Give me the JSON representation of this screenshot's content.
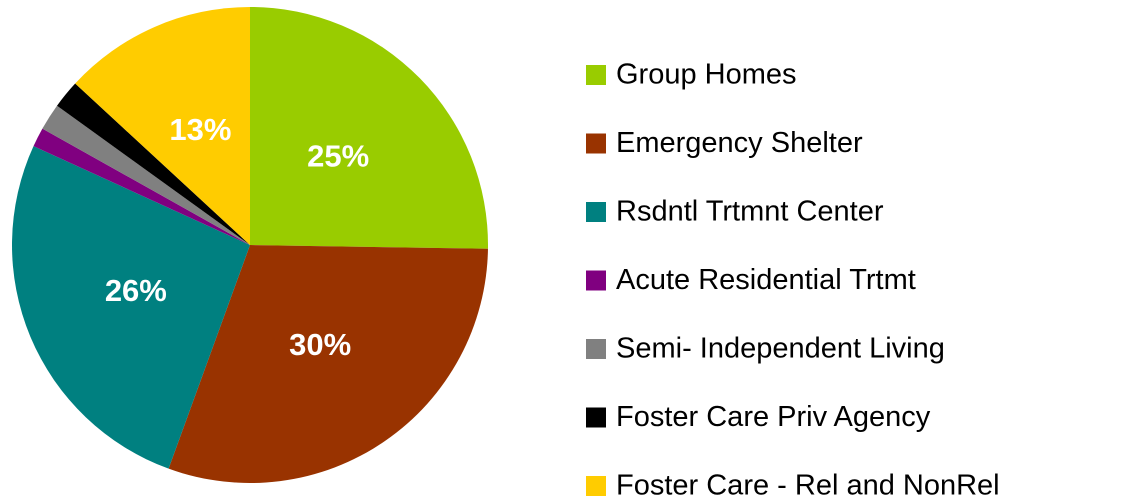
{
  "chart_data": {
    "type": "pie",
    "categories": [
      "Group Homes",
      "Emergency Shelter",
      "Rsdntl Trtmnt Center",
      "Acute Residential Trtmt",
      "Semi- Independent Living",
      "Foster Care Priv Agency",
      "Foster Care - Rel and NonRel"
    ],
    "values": [
      25,
      30,
      26,
      1.3,
      1.8,
      1.9,
      13
    ],
    "value_labels": [
      "25%",
      "30%",
      "26%",
      null,
      null,
      null,
      "13%"
    ],
    "colors": [
      "#99cc00",
      "#993300",
      "#008080",
      "#800080",
      "#808080",
      "#000000",
      "#ffcc00"
    ],
    "legend": "right"
  }
}
